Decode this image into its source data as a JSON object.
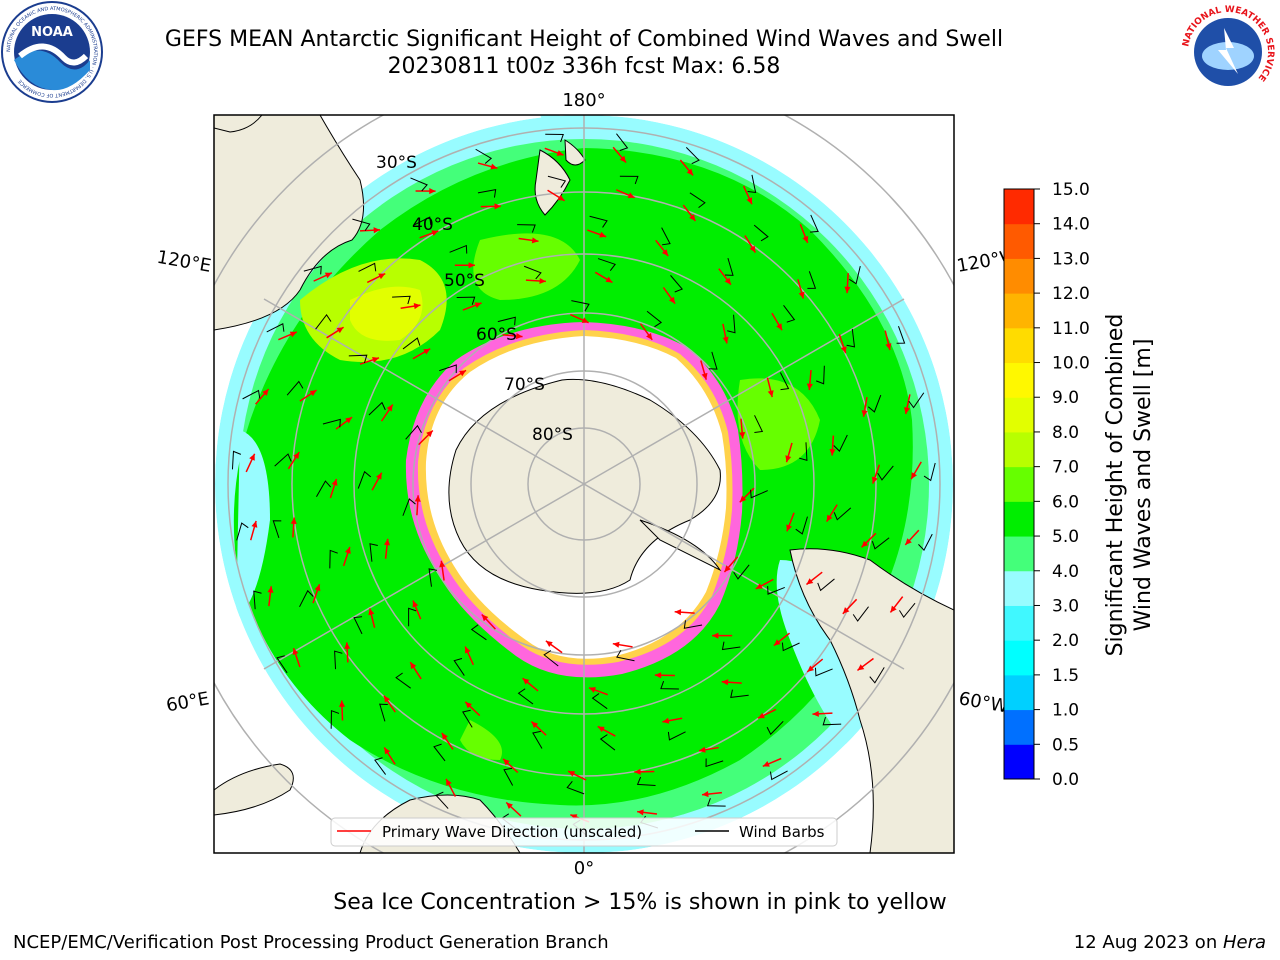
{
  "title_line1": "GEFS MEAN Antarctic Significant Height of Combined Wind Waves and Swell",
  "title_line2": "20230811 t00z 336h fcst   Max: 6.58",
  "logos": {
    "left": "noaa-logo",
    "right": "nws-logo",
    "left_text": "NOAA",
    "left_ring": "NATIONAL OCEANIC AND ATMOSPHERIC ADMINISTRATION · U.S. DEPARTMENT OF COMMERCE",
    "right_ring": "NATIONAL WEATHER SERVICE"
  },
  "map": {
    "projection": "south-polar-stereographic",
    "lon_labels": {
      "top": "180°",
      "bottom": "0°",
      "upper_left": "120°E",
      "lower_left": "60°E",
      "upper_right": "120°W",
      "lower_right": "60°W"
    },
    "lat_labels": [
      "30°S",
      "40°S",
      "50°S",
      "60°S",
      "70°S",
      "80°S"
    ],
    "colors": {
      "land": "#efecdc",
      "ice_pink": "#ff66dd",
      "ice_yellow": "#ffd24a",
      "wave_arrow": "#ff0000",
      "wind_barb": "#000000",
      "grid": "#b0b0b0"
    }
  },
  "legend": {
    "items": [
      {
        "label": "Primary Wave Direction (unscaled)",
        "color": "#ff0000"
      },
      {
        "label": "Wind Barbs",
        "color": "#000000"
      }
    ]
  },
  "colorbar": {
    "label_line1": "Significant Height of Combined",
    "label_line2": "Wind Waves and Swell [m]",
    "ticks": [
      "0.0",
      "0.5",
      "1.0",
      "1.5",
      "2.0",
      "3.0",
      "4.0",
      "5.0",
      "6.0",
      "7.0",
      "8.0",
      "9.0",
      "10.0",
      "11.0",
      "12.0",
      "13.0",
      "14.0",
      "15.0"
    ],
    "colors": [
      "#0000ff",
      "#0070ff",
      "#00d0ff",
      "#00ffff",
      "#40f8ff",
      "#98fcff",
      "#44ff7a",
      "#00ee00",
      "#66ff00",
      "#b8ff00",
      "#e2ff00",
      "#fff800",
      "#ffdc00",
      "#ffb400",
      "#ff8c00",
      "#ff5a00",
      "#ff2a00"
    ]
  },
  "caption": "Sea Ice Concentration > 15% is shown in pink to yellow",
  "footer_left": "NCEP/EMC/Verification Post Processing Product Generation Branch",
  "footer_right_date": "12 Aug 2023 on ",
  "footer_right_host": "Hera"
}
